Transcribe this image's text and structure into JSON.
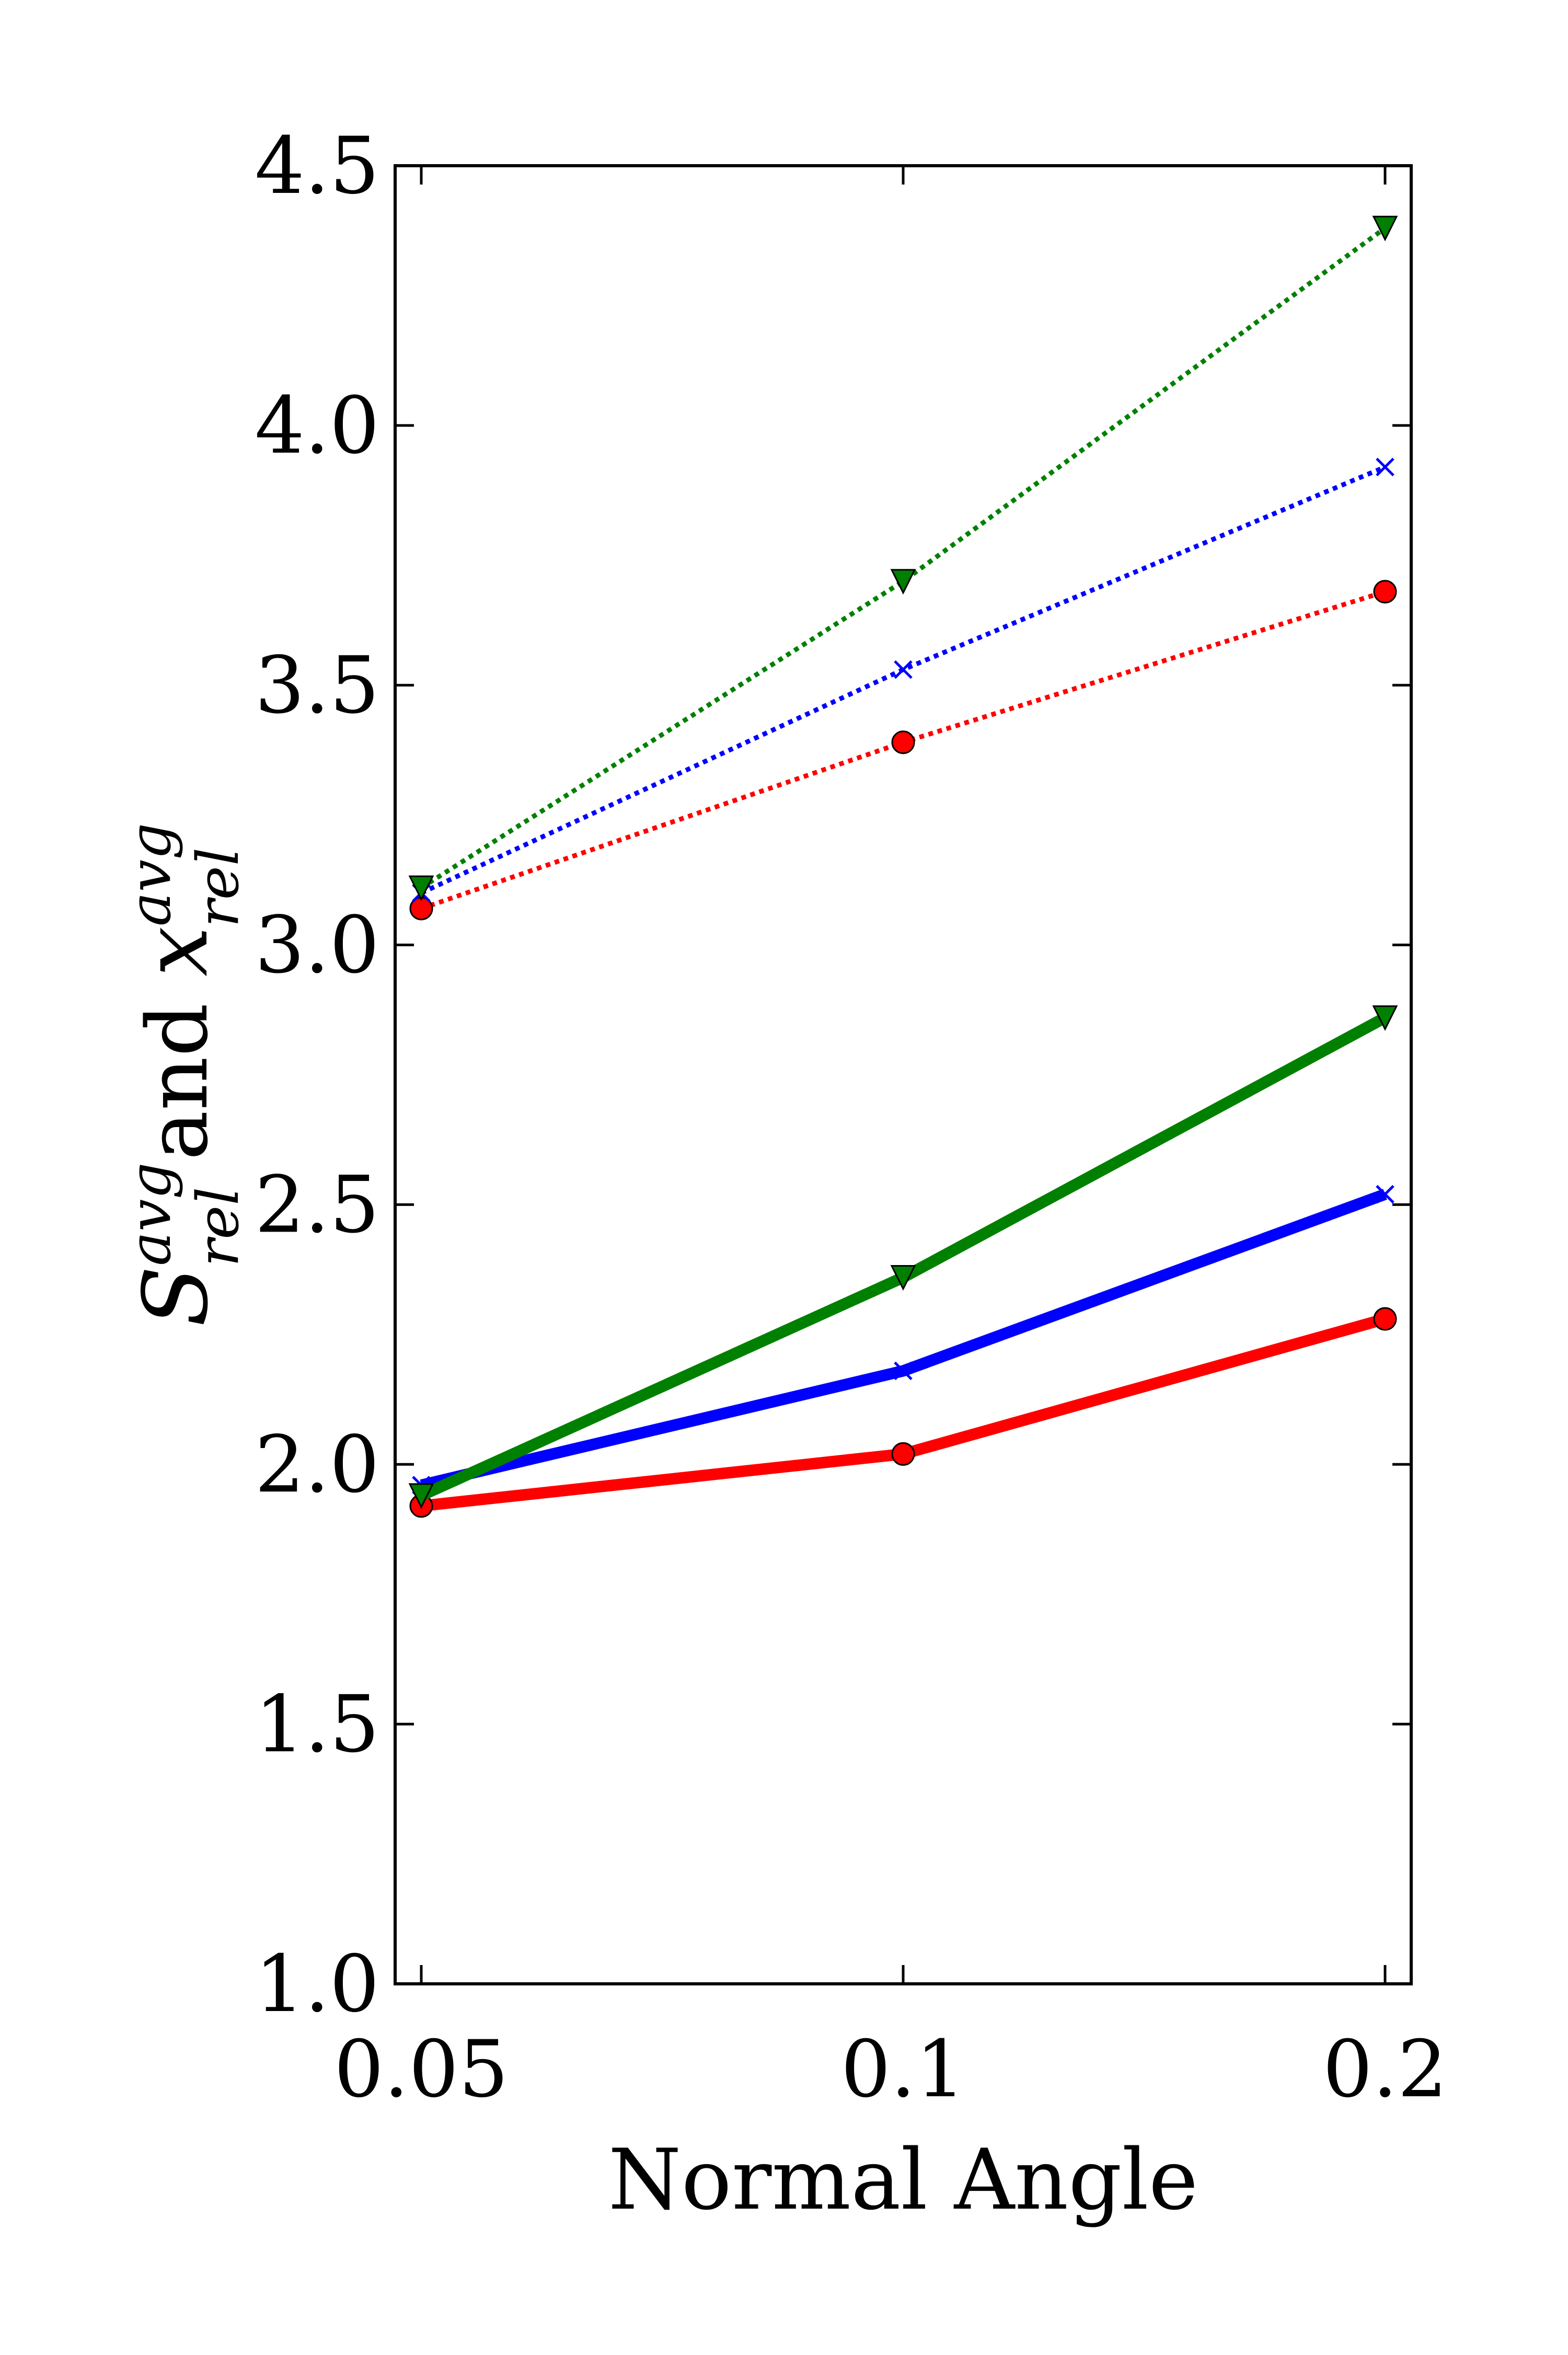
{
  "chart_data": {
    "type": "line",
    "xlabel": "Normal Angle",
    "ylabel": {
      "s_main": "S",
      "s_sup": "avg",
      "s_sub": "rel",
      "conj": " and ",
      "x_main": "x",
      "x_sup": "avg",
      "x_sub": "rel"
    },
    "x_ticks": [
      "0.05",
      "0.1",
      "0.2"
    ],
    "y_ticks": [
      "1.0",
      "1.5",
      "2.0",
      "2.5",
      "3.0",
      "3.5",
      "4.0",
      "4.5"
    ],
    "ylim": [
      1.0,
      4.5
    ],
    "x_scale": "categorical, evenly spaced",
    "grid": false,
    "legend": "none",
    "series": [
      {
        "color": "#ff0000",
        "line": "solid",
        "marker": "circle",
        "values": [
          1.92,
          2.02,
          2.28
        ]
      },
      {
        "color": "#0000ff",
        "line": "solid",
        "marker": "x",
        "values": [
          1.96,
          2.18,
          2.52
        ]
      },
      {
        "color": "#008000",
        "line": "solid",
        "marker": "triangle-down",
        "values": [
          1.94,
          2.36,
          2.86
        ]
      },
      {
        "color": "#ff0000",
        "line": "dotted",
        "marker": "circle",
        "values": [
          3.07,
          3.39,
          3.68
        ]
      },
      {
        "color": "#0000ff",
        "line": "dotted",
        "marker": "x",
        "values": [
          3.1,
          3.53,
          3.92
        ]
      },
      {
        "color": "#008000",
        "line": "dotted",
        "marker": "triangle-down",
        "values": [
          3.11,
          3.7,
          4.38
        ]
      }
    ]
  }
}
